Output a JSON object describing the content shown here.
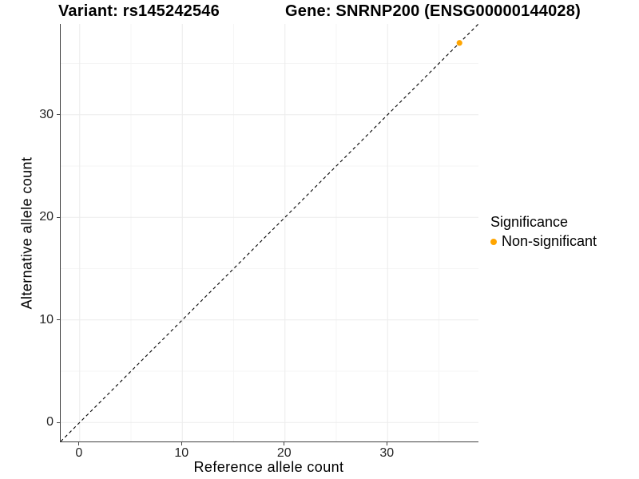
{
  "chart_data": {
    "type": "scatter",
    "title_left": "Variant: rs145242546",
    "title_right": "Gene: SNRNP200 (ENSG00000144028)",
    "xlabel": "Reference allele count",
    "ylabel": "Alternative allele count",
    "x_ticks": [
      0,
      10,
      20,
      30
    ],
    "y_ticks": [
      0,
      10,
      20,
      30
    ],
    "x_minor_ticks": [
      5,
      15,
      25,
      35
    ],
    "y_minor_ticks": [
      5,
      15,
      25,
      35
    ],
    "xlim": [
      -1.85,
      38.85
    ],
    "ylim": [
      -1.85,
      38.85
    ],
    "grid": "major+minor",
    "identity_line": {
      "style": "dashed",
      "color": "#000000",
      "from": -1.85,
      "to": 38.85
    },
    "series": [
      {
        "name": "Non-significant",
        "color": "#FFA500",
        "points": [
          {
            "x": 37,
            "y": 37
          }
        ]
      }
    ],
    "legend": {
      "title": "Significance",
      "position": "right",
      "items": [
        {
          "label": "Non-significant",
          "color": "#FFA500"
        }
      ]
    }
  },
  "colors": {
    "background": "#ffffff",
    "axis_line": "#404040",
    "tick_text": "#262626",
    "grid_major": "#ececec",
    "grid_minor": "#f5f5f5"
  }
}
